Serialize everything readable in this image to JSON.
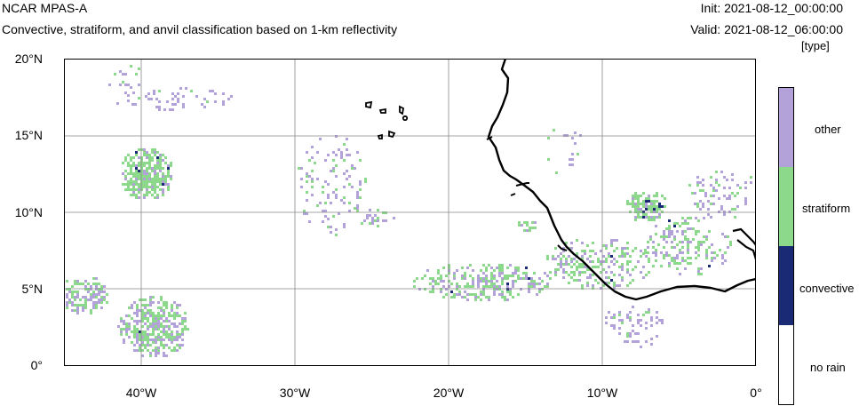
{
  "header": {
    "model": "NCAR MPAS-A",
    "description": "Convective, stratiform, and anvil classification based on 1-km reflectivity",
    "init": "Init: 2021-08-12_00:00:00",
    "valid": "Valid: 2021-08-12_06:00:00",
    "unit": "[type]"
  },
  "map": {
    "lat_labels": [
      "20°N",
      "15°N",
      "10°N",
      "5°N",
      "0°"
    ],
    "lon_labels": [
      "40°W",
      "30°W",
      "20°W",
      "10°W",
      "0°"
    ],
    "grid_color": "#888888",
    "coast_color": "#000000"
  },
  "legend": {
    "entries": [
      {
        "label": "other",
        "color": "#b3a2d9"
      },
      {
        "label": "stratiform",
        "color": "#8cd98c"
      },
      {
        "label": "convective",
        "color": "#1a2a75"
      },
      {
        "label": "no rain",
        "color": "#ffffff"
      }
    ]
  }
}
